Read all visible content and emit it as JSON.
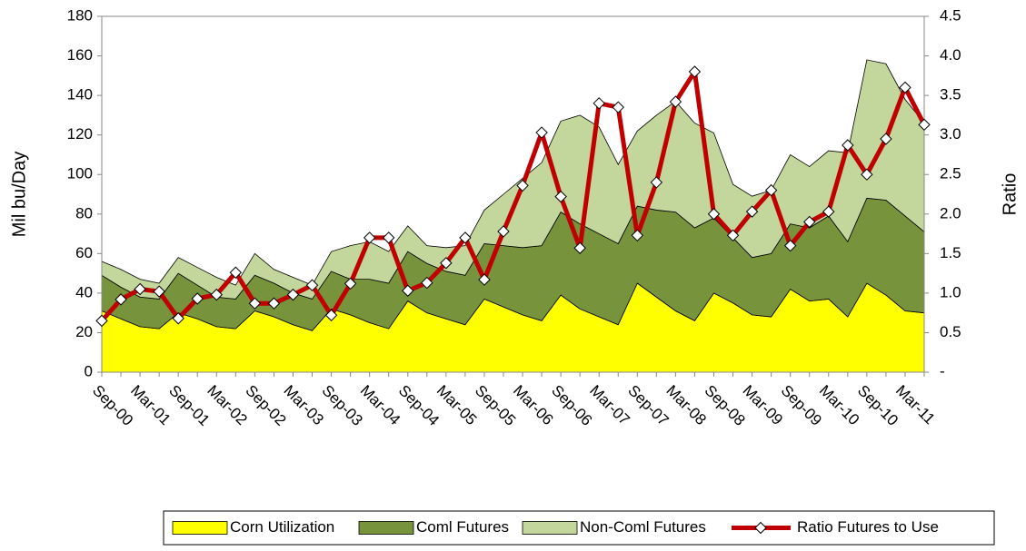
{
  "chart_data": {
    "type": "stacked-area-line",
    "ylabel": "Mil bu/Day",
    "y2label": "Ratio",
    "categories": [
      "Sep-00",
      null,
      "Mar-01",
      null,
      "Sep-01",
      null,
      "Mar-02",
      null,
      "Sep-02",
      null,
      "Mar-03",
      null,
      "Sep-03",
      null,
      "Mar-04",
      null,
      "Sep-04",
      null,
      "Mar-05",
      null,
      "Sep-05",
      null,
      "Mar-06",
      null,
      "Sep-06",
      null,
      "Mar-07",
      null,
      "Sep-07",
      null,
      "Mar-08",
      null,
      "Sep-08",
      null,
      "Mar-09",
      null,
      "Sep-09",
      null,
      "Mar-10",
      null,
      "Sep-10",
      null,
      "Mar-11",
      null
    ],
    "series": [
      {
        "name": "Corn Utilization",
        "color": "#ffff00",
        "values": [
          31,
          27,
          23,
          22,
          30,
          27,
          23,
          22,
          31,
          28,
          24,
          21,
          32,
          29,
          25,
          22,
          36,
          30,
          27,
          24,
          37,
          33,
          29,
          26,
          39,
          32,
          28,
          24,
          45,
          38,
          31,
          26,
          40,
          35,
          29,
          28,
          42,
          36,
          37,
          28,
          45,
          39,
          31,
          30
        ]
      },
      {
        "name": "Coml Futures",
        "color": "#77933c",
        "values": [
          18,
          16,
          15,
          15,
          20,
          17,
          15,
          15,
          18,
          17,
          16,
          16,
          19,
          18,
          22,
          23,
          25,
          25,
          24,
          25,
          28,
          31,
          34,
          38,
          42,
          43,
          42,
          41,
          39,
          44,
          50,
          47,
          38,
          33,
          29,
          32,
          33,
          37,
          42,
          38,
          43,
          48,
          48,
          41
        ]
      },
      {
        "name": "Non-Coml Futures",
        "color": "#c3d69b",
        "values": [
          7,
          9,
          9,
          8,
          8,
          9,
          10,
          7,
          11,
          7,
          8,
          7,
          10,
          17,
          19,
          16,
          13,
          9,
          12,
          15,
          17,
          26,
          35,
          42,
          46,
          55,
          54,
          40,
          38,
          48,
          56,
          53,
          43,
          27,
          31,
          32,
          35,
          31,
          33,
          45,
          70,
          69,
          59,
          55
        ]
      },
      {
        "name": "Ratio Futures to Use",
        "color": "#c00000",
        "axis": "y2",
        "values": [
          0.65,
          0.92,
          1.05,
          1.02,
          0.68,
          0.93,
          0.98,
          1.26,
          0.87,
          0.87,
          0.98,
          1.1,
          0.72,
          1.12,
          1.7,
          1.7,
          1.03,
          1.13,
          1.38,
          1.7,
          1.17,
          1.78,
          2.36,
          3.03,
          2.22,
          1.57,
          3.4,
          3.35,
          1.73,
          2.4,
          3.42,
          3.8,
          2.0,
          1.73,
          2.03,
          2.3,
          1.6,
          1.9,
          2.03,
          2.87,
          2.5,
          2.95,
          3.6,
          3.13
        ]
      }
    ],
    "ylim": [
      0,
      180
    ],
    "yticks": [
      0,
      20,
      40,
      60,
      80,
      100,
      120,
      140,
      160,
      180
    ],
    "y2lim": [
      0,
      4.5
    ],
    "y2ticks": [
      {
        "value": 0,
        "label": "-"
      },
      0.5,
      {
        "value": 1,
        "label": "1.0"
      },
      1.5,
      {
        "value": 2,
        "label": "2.0"
      },
      2.5,
      {
        "value": 3,
        "label": "3.0"
      },
      3.5,
      {
        "value": 4,
        "label": "4.0"
      },
      4.5
    ],
    "legend": "bottom"
  }
}
